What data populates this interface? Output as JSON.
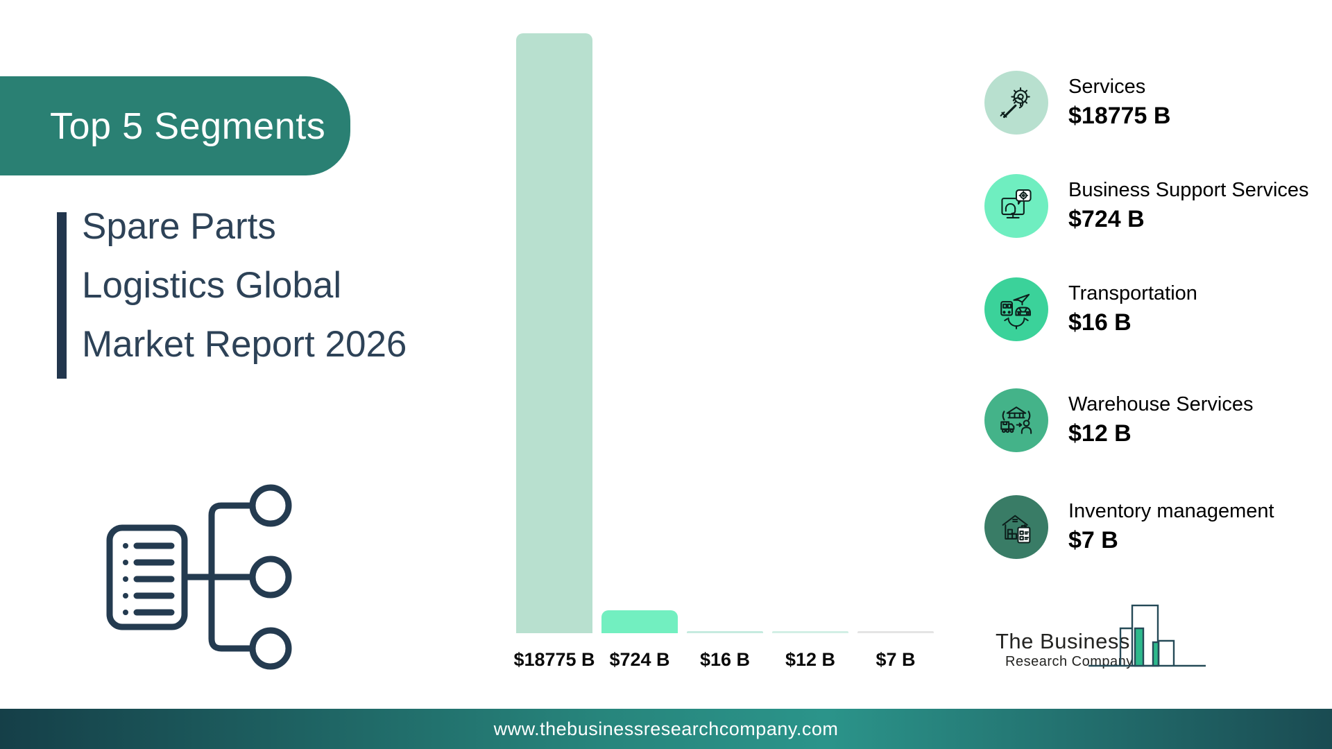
{
  "header": {
    "badge": "Top 5 Segments",
    "title": "Spare Parts\nLogistics Global\nMarket Report 2026"
  },
  "chart_data": {
    "type": "bar",
    "title": "Top 5 Segments",
    "categories": [
      "Services",
      "Business Support Services",
      "Transportation",
      "Warehouse Services",
      "Inventory management"
    ],
    "values": [
      18775,
      724,
      16,
      12,
      7
    ],
    "labels": [
      "$18775 B",
      "$724 B",
      "$16 B",
      "$12 B",
      "$7 B"
    ],
    "bar_colors": [
      "#b8e0cf",
      "#72efc0",
      "#c6ebdf",
      "#d2efe5",
      "#e4e4e4"
    ],
    "xlabel": "",
    "ylabel": "",
    "ylim": [
      0,
      18775
    ],
    "grid": false,
    "legend_position": "right"
  },
  "legend": {
    "items": [
      {
        "label": "Services",
        "value": "$18775 B",
        "icon": "services-icon",
        "color": "#b8e0cf"
      },
      {
        "label": "Business Support Services",
        "value": "$724 B",
        "icon": "business-support-services-icon",
        "color": "#6feec0"
      },
      {
        "label": "Transportation",
        "value": "$16 B",
        "icon": "transportation-icon",
        "color": "#3bd29a"
      },
      {
        "label": "Warehouse Services",
        "value": "$12 B",
        "icon": "warehouse-services-icon",
        "color": "#44b389"
      },
      {
        "label": "Inventory management",
        "value": "$7 B",
        "icon": "inventory-management-icon",
        "color": "#397c66"
      }
    ]
  },
  "logo": {
    "line1": "The Business",
    "line2": "Research Company"
  },
  "footer": {
    "url": "www.thebusinessresearchcompany.com"
  },
  "colors": {
    "badge_teal": "#2a8073",
    "accent_navy": "#22364d",
    "title_navy": "#2d4257",
    "label_black": "#0a0a0a",
    "footer_dark": "#153f48",
    "footer_light": "#2b948a",
    "logo_outline": "#254a57",
    "logo_green": "#2eb98c"
  }
}
